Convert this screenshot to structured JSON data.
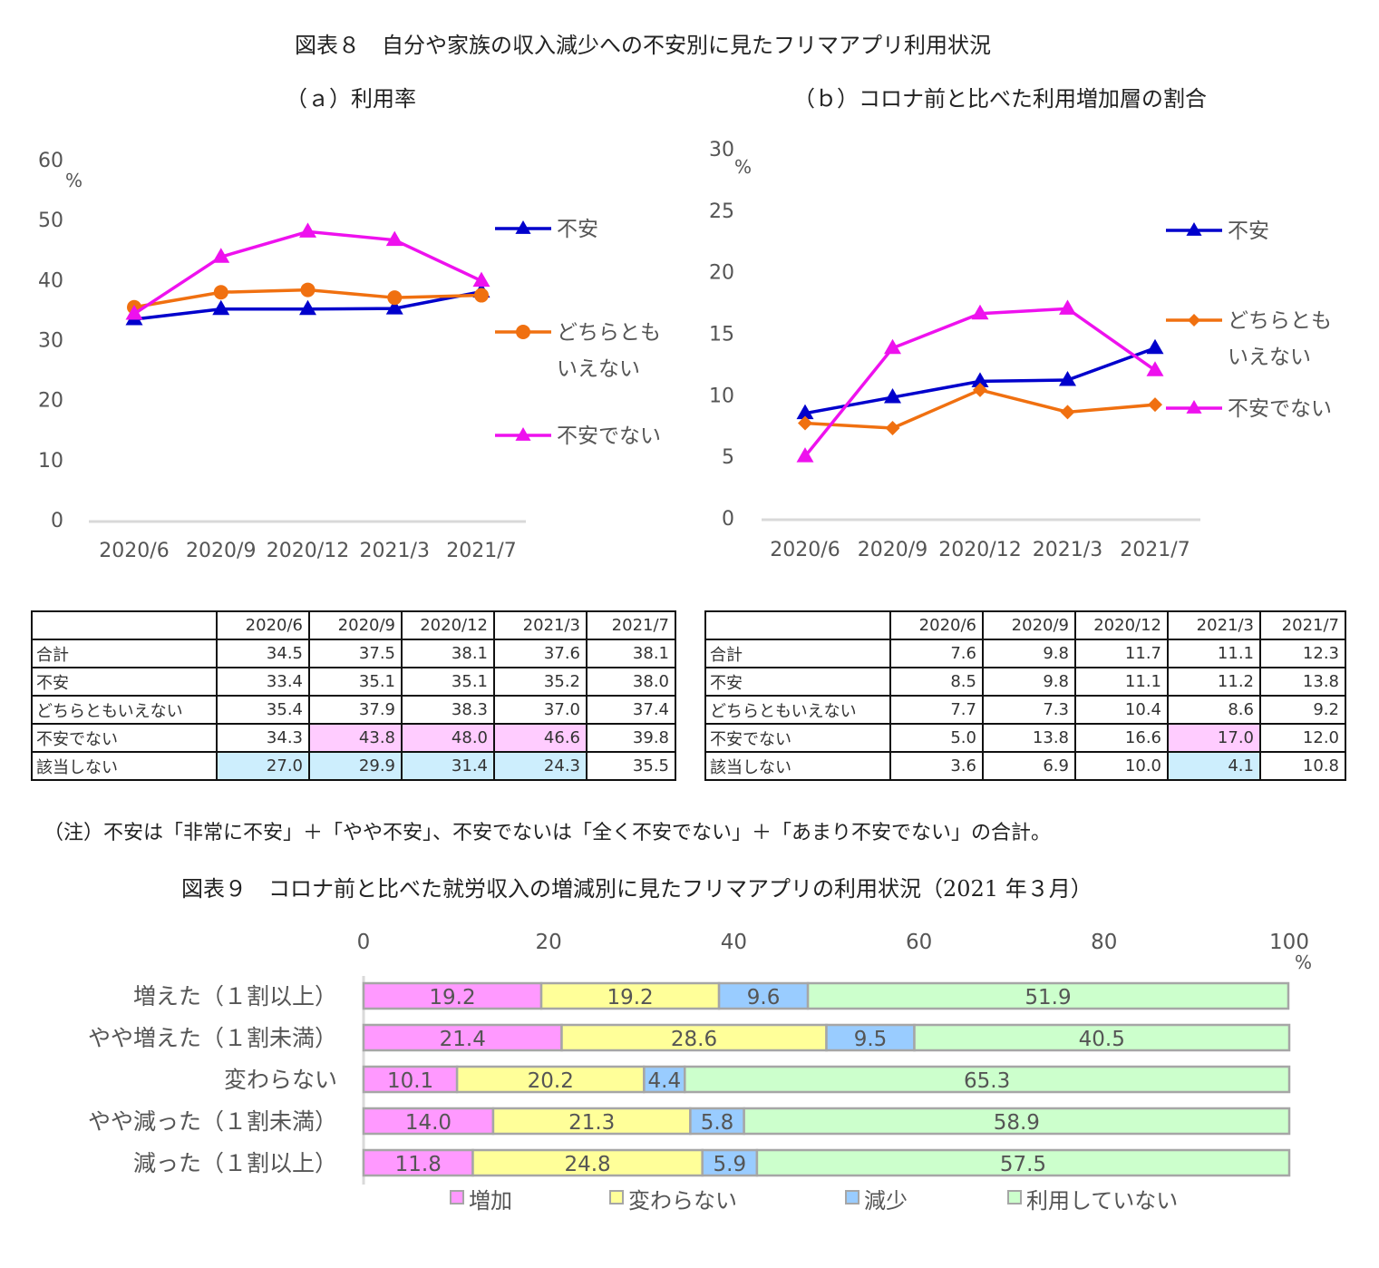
{
  "fig8": {
    "title": "図表８　自分や家族の収入減少への不安別に見たフリマアプリ利用状況",
    "charts": [
      {
        "type": "line",
        "title": "（ａ）利用率",
        "unit": "%",
        "categories": [
          "2020/6",
          "2020/9",
          "2020/12",
          "2021/3",
          "2021/7"
        ],
        "ylim": [
          0,
          60
        ],
        "yticks": [
          "0",
          "10",
          "20",
          "30",
          "40",
          "50",
          "60"
        ],
        "grid": false,
        "series": [
          {
            "name": "不安",
            "values": [
              33.4,
              35.1,
              35.1,
              35.2,
              38.0
            ],
            "color": "#0000cc",
            "marker": "triangle"
          },
          {
            "name": "どちらとも\nいえない",
            "values": [
              35.4,
              37.9,
              38.3,
              37.0,
              37.4
            ],
            "color": "#f07010",
            "marker": "circle"
          },
          {
            "name": "不安でない",
            "values": [
              34.3,
              43.8,
              48.0,
              46.6,
              39.8
            ],
            "color": "#ee11ee",
            "marker": "triangle"
          }
        ]
      },
      {
        "type": "line",
        "title": "（ｂ）コロナ前と比べた利用増加層の割合",
        "unit": "%",
        "categories": [
          "2020/6",
          "2020/9",
          "2020/12",
          "2021/3",
          "2021/7"
        ],
        "ylim": [
          0,
          30
        ],
        "yticks": [
          "0",
          "5",
          "10",
          "15",
          "20",
          "25",
          "30"
        ],
        "grid": false,
        "series": [
          {
            "name": "不安",
            "values": [
              8.5,
              9.8,
              11.1,
              11.2,
              13.8
            ],
            "color": "#0000cc",
            "marker": "triangle"
          },
          {
            "name": "どちらとも\nいえない",
            "values": [
              7.7,
              7.3,
              10.4,
              8.6,
              9.2
            ],
            "color": "#f07010",
            "marker": "diamond"
          },
          {
            "name": "不安でない",
            "values": [
              5.0,
              13.8,
              16.6,
              17.0,
              12.0
            ],
            "color": "#ee11ee",
            "marker": "triangle"
          }
        ]
      }
    ],
    "tables": [
      {
        "type": "table",
        "columns": [
          "",
          "2020/6",
          "2020/9",
          "2020/12",
          "2021/3",
          "2021/7"
        ],
        "rows": [
          {
            "label": "合計",
            "values": [
              "34.5",
              "37.5",
              "38.1",
              "37.6",
              "38.1"
            ],
            "highlight": [
              "",
              "",
              "",
              "",
              ""
            ]
          },
          {
            "label": "不安",
            "values": [
              "33.4",
              "35.1",
              "35.1",
              "35.2",
              "38.0"
            ],
            "highlight": [
              "",
              "",
              "",
              "",
              ""
            ]
          },
          {
            "label": "どちらともいえない",
            "values": [
              "35.4",
              "37.9",
              "38.3",
              "37.0",
              "37.4"
            ],
            "highlight": [
              "",
              "",
              "",
              "",
              ""
            ]
          },
          {
            "label": "不安でない",
            "values": [
              "34.3",
              "43.8",
              "48.0",
              "46.6",
              "39.8"
            ],
            "highlight": [
              "",
              "pink",
              "pink",
              "pink",
              ""
            ]
          },
          {
            "label": "該当しない",
            "values": [
              "27.0",
              "29.9",
              "31.4",
              "24.3",
              "35.5"
            ],
            "highlight": [
              "blue",
              "blue",
              "blue",
              "blue",
              ""
            ]
          }
        ]
      },
      {
        "type": "table",
        "columns": [
          "",
          "2020/6",
          "2020/9",
          "2020/12",
          "2021/3",
          "2021/7"
        ],
        "rows": [
          {
            "label": "合計",
            "values": [
              "7.6",
              "9.8",
              "11.7",
              "11.1",
              "12.3"
            ],
            "highlight": [
              "",
              "",
              "",
              "",
              ""
            ]
          },
          {
            "label": "不安",
            "values": [
              "8.5",
              "9.8",
              "11.1",
              "11.2",
              "13.8"
            ],
            "highlight": [
              "",
              "",
              "",
              "",
              ""
            ]
          },
          {
            "label": "どちらともいえない",
            "values": [
              "7.7",
              "7.3",
              "10.4",
              "8.6",
              "9.2"
            ],
            "highlight": [
              "",
              "",
              "",
              "",
              ""
            ]
          },
          {
            "label": "不安でない",
            "values": [
              "5.0",
              "13.8",
              "16.6",
              "17.0",
              "12.0"
            ],
            "highlight": [
              "",
              "",
              "",
              "pink",
              ""
            ]
          },
          {
            "label": "該当しない",
            "values": [
              "3.6",
              "6.9",
              "10.0",
              "4.1",
              "10.8"
            ],
            "highlight": [
              "",
              "",
              "",
              "blue",
              ""
            ]
          }
        ]
      }
    ],
    "note": "（注）不安は「非常に不安」＋「やや不安」、不安でないは「全く不安でない」＋「あまり不安でない」の合計。"
  },
  "fig9": {
    "title": "図表９　コロナ前と比べた就労収入の増減別に見たフリマアプリの利用状況（2021 年３月）"
  },
  "chart_data": {
    "type": "bar",
    "orientation": "horizontal",
    "stacked": true,
    "unit": "%",
    "xlim": [
      0,
      100
    ],
    "xticks": [
      "0",
      "20",
      "40",
      "60",
      "80",
      "100"
    ],
    "grid": false,
    "legend": "bottom",
    "categories": [
      "増えた（１割以上）",
      "やや増えた（１割未満）",
      "変わらない",
      "やや減った（１割未満）",
      "減った（１割以上）"
    ],
    "series": [
      {
        "name": "増加",
        "values": [
          19.2,
          21.4,
          10.1,
          14.0,
          11.8
        ],
        "color": "#ff99ff"
      },
      {
        "name": "変わらない",
        "values": [
          19.2,
          28.6,
          20.2,
          21.3,
          24.8
        ],
        "color": "#ffff99"
      },
      {
        "name": "減少",
        "values": [
          9.6,
          9.5,
          4.4,
          5.8,
          5.9
        ],
        "color": "#99ccff"
      },
      {
        "name": "利用していない",
        "values": [
          51.9,
          40.5,
          65.3,
          58.9,
          57.5
        ],
        "color": "#ccffcc"
      }
    ]
  }
}
